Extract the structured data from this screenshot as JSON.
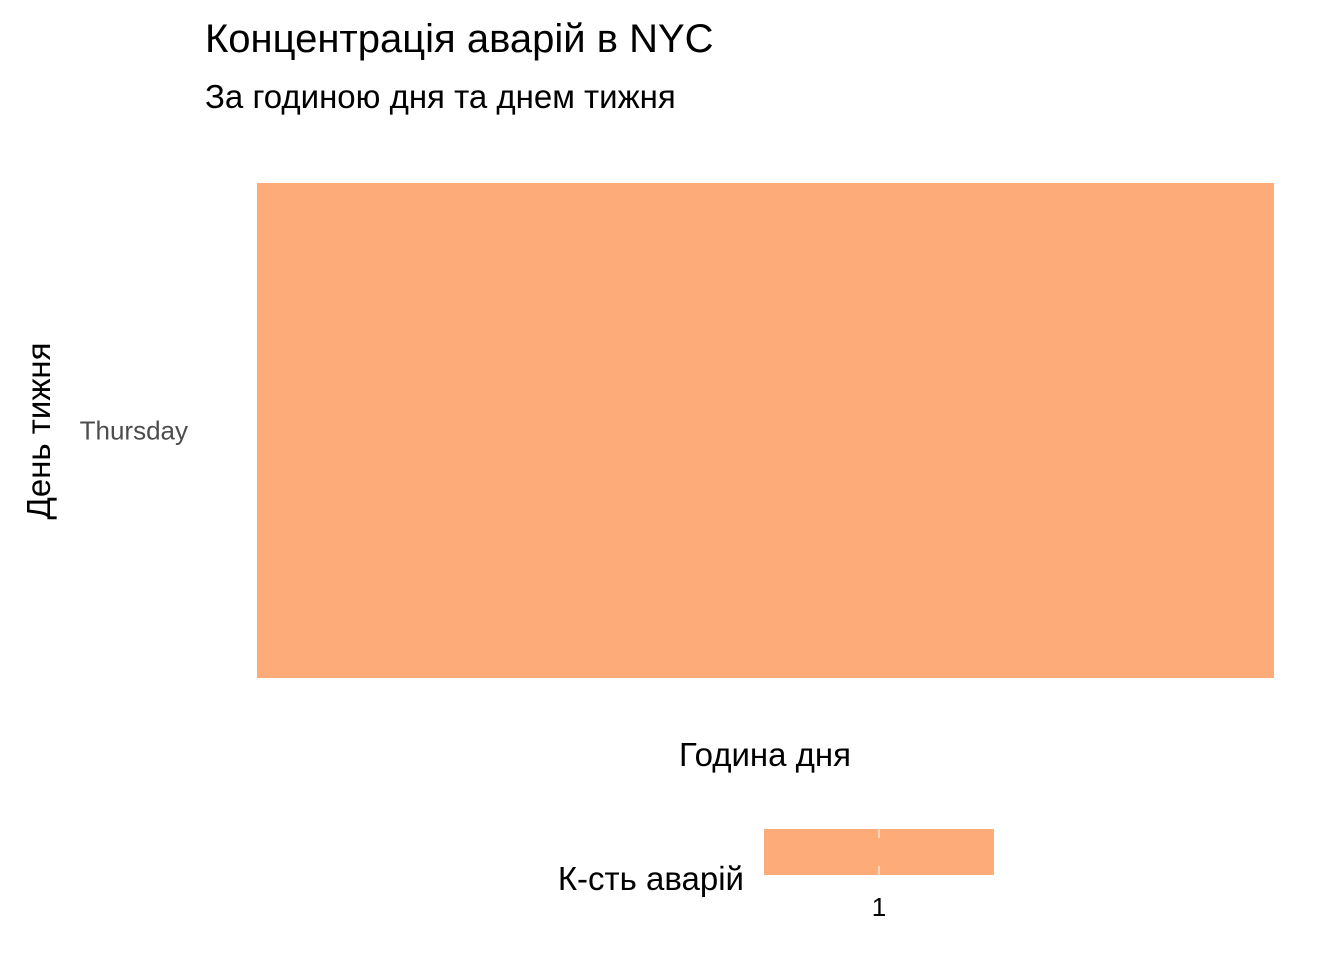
{
  "chart_data": {
    "type": "heatmap",
    "title": "Концентрація аварій в NYC",
    "subtitle": "За годиною дня та днем тижня",
    "xlabel": "Година дня",
    "ylabel": "День тижня",
    "x_categories": [
      ""
    ],
    "y_categories": [
      "Thursday"
    ],
    "cells": [
      {
        "x": "",
        "y": "Thursday",
        "value": 1,
        "color": "#FDAC79"
      }
    ],
    "grid": false,
    "legend": {
      "title": "К-сть аварій",
      "position": "bottom",
      "min": 1,
      "max": 1,
      "breaks": [
        1
      ],
      "color_low": "#FDAC79",
      "color_high": "#FDAC79"
    },
    "colors": {
      "cell": "#FDAC79",
      "tick_text": "#4D4D4D",
      "text": "#000000",
      "background": "#FFFFFF"
    }
  }
}
